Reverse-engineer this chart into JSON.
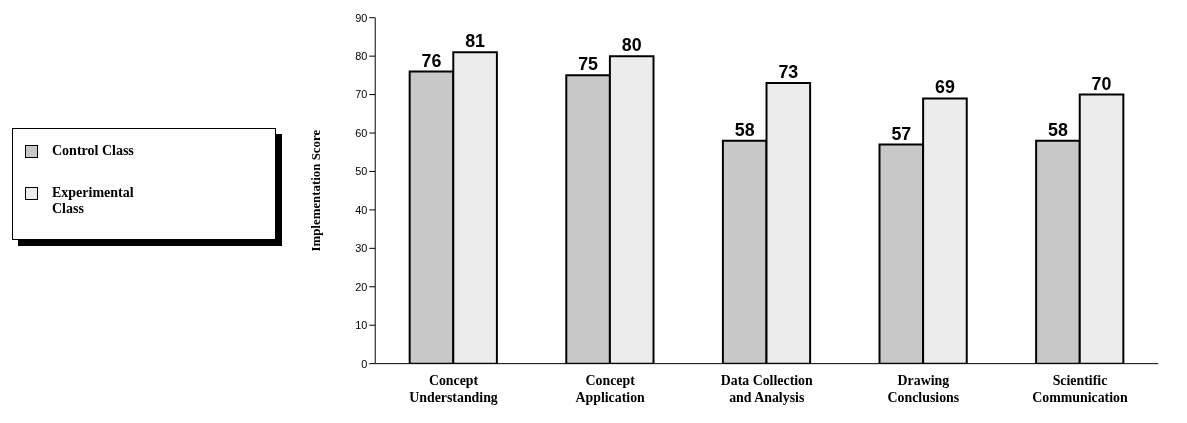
{
  "chart_data": {
    "type": "bar",
    "ylabel": "Implementation Score",
    "categories": [
      "Concept Understanding",
      "Concept Application",
      "Data Collection and Analysis",
      "Drawing Conclusions",
      "Scientific Communication"
    ],
    "series": [
      {
        "name": "Control Class",
        "color": "#c8c8c8",
        "values": [
          76,
          75,
          58,
          57,
          58
        ]
      },
      {
        "name": "Experimental Class",
        "color": "#ececec",
        "values": [
          81,
          80,
          73,
          69,
          70
        ]
      }
    ],
    "ylim": [
      0,
      90
    ],
    "yticks": [
      0,
      10,
      20,
      30,
      40,
      50,
      60,
      70,
      80,
      90
    ],
    "grid": false,
    "legend": "left",
    "data_labels": true
  }
}
